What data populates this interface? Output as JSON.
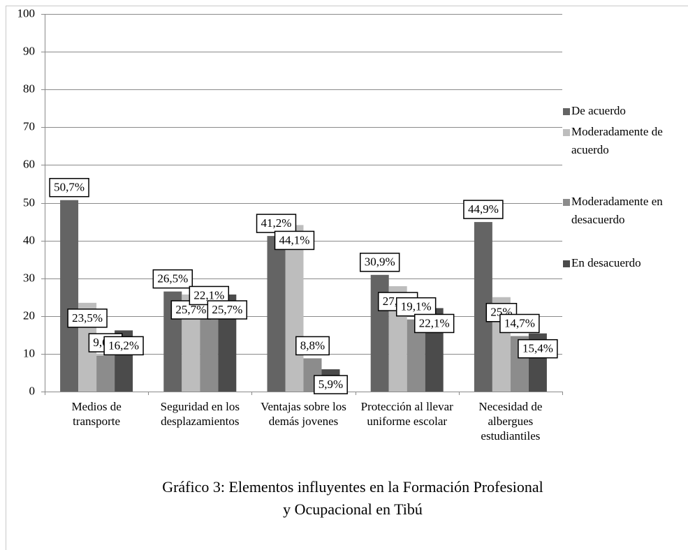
{
  "chart_data": {
    "type": "bar",
    "title": "Gráfico 3: Elementos influyentes en la Formación Profesional y Ocupacional en Tibú",
    "categories": [
      "Medios de transporte",
      "Seguridad en los desplazamientos",
      "Ventajas sobre los demás jovenes",
      "Protección al llevar uniforme escolar",
      "Necesidad de albergues estudiantiles"
    ],
    "series": [
      {
        "name": "De acuerdo",
        "color": "#646464",
        "values": [
          50.7,
          26.5,
          41.2,
          30.9,
          44.9
        ],
        "value_labels": [
          "50,7%",
          "26,5%",
          "41,2%",
          "30,9%",
          "44,9%"
        ]
      },
      {
        "name": "Moderadamente de acuerdo",
        "color": "#bdbdbd",
        "values": [
          23.5,
          25.7,
          44.1,
          27.9,
          25
        ],
        "value_labels": [
          "23,5%",
          "25,7%",
          "44,1%",
          "27,9%",
          "25%"
        ]
      },
      {
        "name": "Moderadamente en desacuerdo",
        "color": "#8c8c8c",
        "values": [
          9.6,
          22.1,
          8.8,
          19.1,
          14.7
        ],
        "value_labels": [
          "9,6%",
          "22,1%",
          "8,8%",
          "19,1%",
          "14,7%"
        ]
      },
      {
        "name": "En desacuerdo",
        "color": "#4b4b4b",
        "values": [
          16.2,
          25.7,
          5.9,
          22.1,
          15.4
        ],
        "value_labels": [
          "16,2%",
          "25,7%",
          "5,9%",
          "22,1%",
          "15,4%"
        ]
      }
    ],
    "ylim": [
      0,
      100
    ],
    "yticks": [
      0,
      10,
      20,
      30,
      40,
      50,
      60,
      70,
      80,
      90,
      100
    ],
    "grid": true,
    "legend": "right"
  }
}
